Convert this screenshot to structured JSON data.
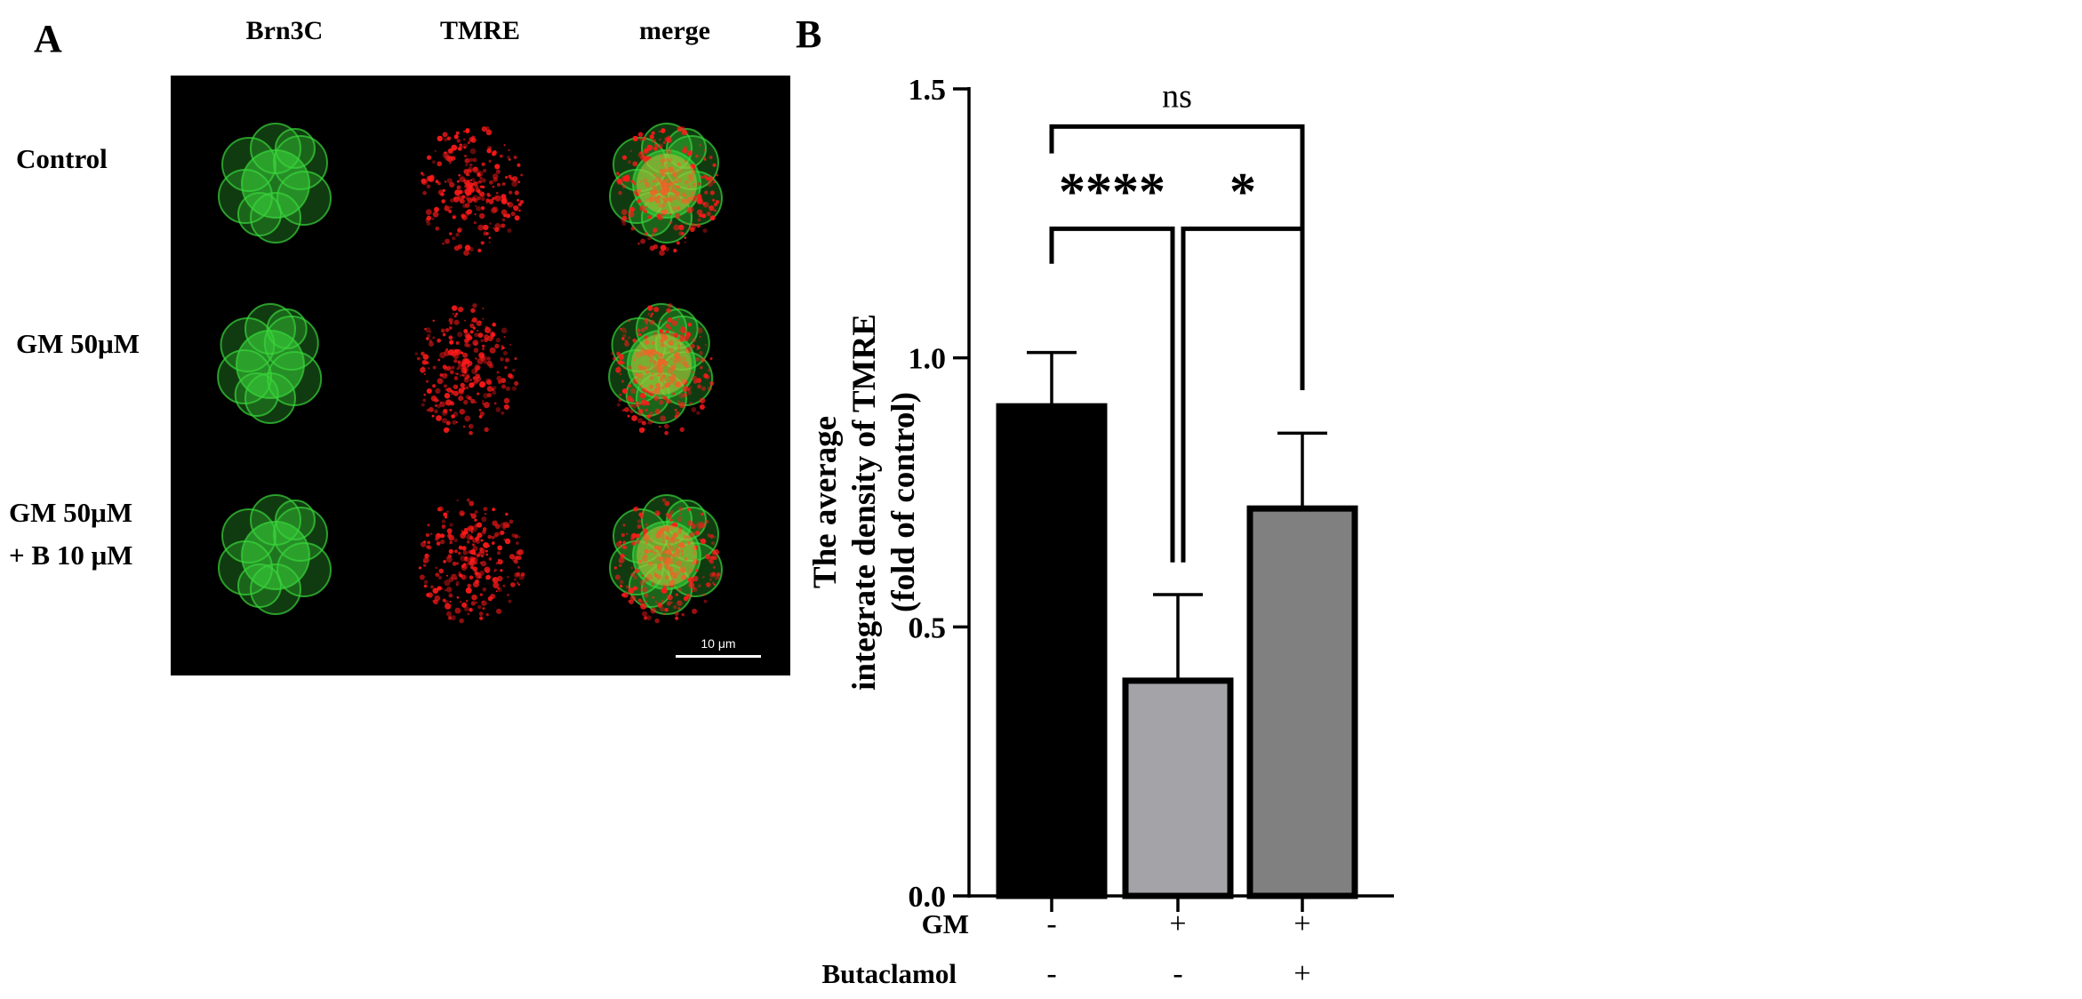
{
  "panel_a": {
    "label": "A",
    "columns": [
      "Brn3C",
      "TMRE",
      "merge"
    ],
    "rows": [
      {
        "label": "Control"
      },
      {
        "label": "GM 50μM"
      },
      {
        "label": "GM 50μM\n+ B 10 μM"
      }
    ],
    "scale_bar_label": "10 μm",
    "colors": {
      "brn3c": "#39d43a",
      "tmre": "#ff1a1a",
      "merge": "#d8c23a",
      "background": "#000000"
    }
  },
  "chart_data": {
    "panel_label": "B",
    "type": "bar",
    "categories": [
      "Control",
      "GM",
      "GM + Butaclamol"
    ],
    "values": [
      0.91,
      0.4,
      0.72
    ],
    "errors": [
      0.1,
      0.16,
      0.14
    ],
    "bar_colors": [
      "#000000",
      "#a3a3a8",
      "#808080"
    ],
    "ylabel": "The average\nintegrate density of TMRE\n(fold of control)",
    "ylim": [
      0,
      1.5
    ],
    "yticks": [
      0.0,
      0.5,
      1.0,
      1.5
    ],
    "ytick_labels": [
      "0.0",
      "0.5",
      "1.0",
      "1.5"
    ],
    "grid": false,
    "condition_rows": [
      {
        "name": "GM",
        "signs": [
          "-",
          "+",
          "+"
        ]
      },
      {
        "name": "Butaclamol",
        "signs": [
          "-",
          "-",
          "+"
        ]
      }
    ],
    "significance": [
      {
        "from": 0,
        "to": 2,
        "label": "ns",
        "level": 1.43
      },
      {
        "from": 0,
        "to": 1,
        "label": "****",
        "level": 1.24
      },
      {
        "from": 1,
        "to": 2,
        "label": "*",
        "level": 1.24
      }
    ]
  }
}
